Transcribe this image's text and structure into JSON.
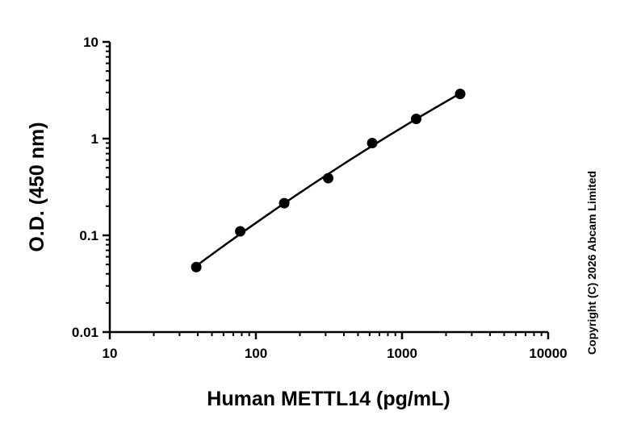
{
  "chart_data": {
    "type": "scatter",
    "xlabel": "Human METTL14 (pg/mL)",
    "ylabel": "O.D. (450 nm)",
    "x_scale": "log",
    "y_scale": "log",
    "xlim": [
      10,
      10000
    ],
    "ylim": [
      0.01,
      10
    ],
    "x_ticks": [
      "10",
      "100",
      "1000",
      "10000"
    ],
    "y_ticks": [
      "0.01",
      "0.1",
      "1",
      "10"
    ],
    "grid": false,
    "series": [
      {
        "points": [
          {
            "x": 39.06,
            "y": 0.047
          },
          {
            "x": 78.13,
            "y": 0.11
          },
          {
            "x": 156.25,
            "y": 0.215
          },
          {
            "x": 312.5,
            "y": 0.39
          },
          {
            "x": 625,
            "y": 0.9
          },
          {
            "x": 1250,
            "y": 1.6
          },
          {
            "x": 2500,
            "y": 2.9
          }
        ],
        "fit_line": true,
        "color": "#000000"
      }
    ],
    "annotation": "Copyright (C) 2026 Abcam Limited"
  }
}
